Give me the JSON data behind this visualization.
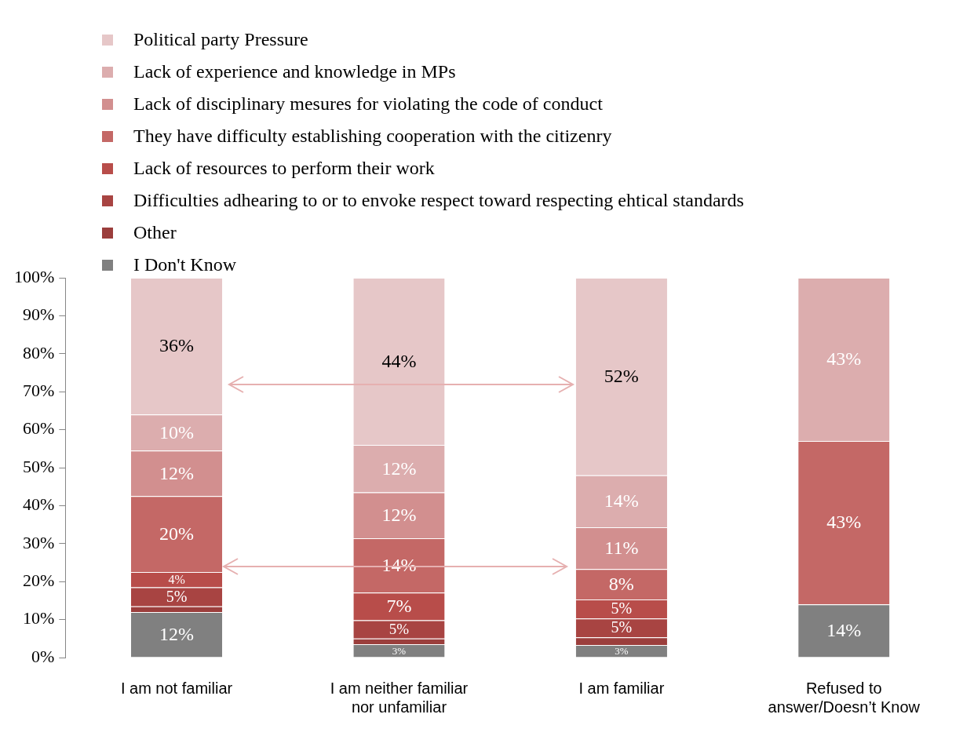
{
  "chart_data": {
    "type": "bar",
    "stacked": true,
    "legend": "top left",
    "data_labels": false,
    "grid": false,
    "categories": [
      "I am not familiar",
      "I am neither familiar nor unfamiliar",
      "I am familiar",
      "Refused to answer/Doesn’t Know"
    ],
    "ylim": [
      0,
      100
    ],
    "yticks": [
      {
        "value": 0,
        "label": "0%"
      },
      {
        "value": 10,
        "label": "10%"
      },
      {
        "value": 20,
        "label": "20%"
      },
      {
        "value": 30,
        "label": "30%"
      },
      {
        "value": 40,
        "label": "40%"
      },
      {
        "value": 50,
        "label": "50%"
      },
      {
        "value": 60,
        "label": "60%"
      },
      {
        "value": 70,
        "label": "70%"
      },
      {
        "value": 80,
        "label": "80%"
      },
      {
        "value": 90,
        "label": "90%"
      },
      {
        "value": 100,
        "label": "100%"
      }
    ],
    "series": [
      {
        "name": "I Don't Know",
        "color": "#808080",
        "values": [
          12,
          3.5,
          3.3,
          14
        ],
        "value_labels": [
          "12%",
          "3%",
          "3%",
          "14%"
        ]
      },
      {
        "name": "Other",
        "color": "#9b3e3c",
        "values": [
          1.5,
          1.5,
          2,
          null
        ],
        "value_labels": [
          null,
          null,
          null,
          null
        ]
      },
      {
        "name": "Difficulties adhearing to or to envoke respect toward respecting ehtical standards",
        "color": "#a84442",
        "values": [
          5,
          4.8,
          5,
          null
        ],
        "value_labels": [
          "5%",
          "5%",
          "5%",
          null
        ]
      },
      {
        "name": "Lack of resources to perform their work",
        "color": "#b84d4a",
        "values": [
          4,
          7.3,
          5,
          null
        ],
        "value_labels": [
          "4%",
          "7%",
          "5%",
          null
        ]
      },
      {
        "name": "They have difficulty establishing cooperation with the citizenry",
        "color": "#c46866",
        "values": [
          20,
          14.3,
          8,
          43
        ],
        "value_labels": [
          "20%",
          "14%",
          "8%",
          "43%"
        ]
      },
      {
        "name": "Lack of disciplinary mesures for violating the code of conduct",
        "color": "#d28f8f",
        "values": [
          12,
          12.1,
          11,
          null
        ],
        "value_labels": [
          "12%",
          "12%",
          "11%",
          null
        ]
      },
      {
        "name": "Lack of experience and knowledge in MPs",
        "color": "#dcadae",
        "values": [
          9.5,
          12.5,
          13.7,
          43
        ],
        "value_labels": [
          "10%",
          "12%",
          "14%",
          "43%"
        ]
      },
      {
        "name": "Political party Pressure",
        "color": "#e6c7c8",
        "values": [
          36,
          44,
          52,
          null
        ],
        "value_labels": [
          "36%",
          "44%",
          "52%",
          null
        ]
      }
    ]
  }
}
